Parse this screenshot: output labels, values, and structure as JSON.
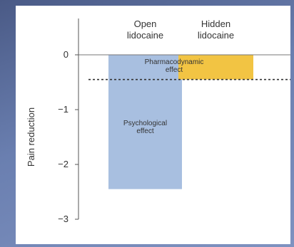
{
  "chart_data": {
    "type": "bar",
    "ylabel": "Pain reduction",
    "ylim": [
      -3,
      0
    ],
    "yticks": [
      0,
      -1,
      -2,
      -3
    ],
    "yticks_labels": [
      "0",
      "−1",
      "−2",
      "−3"
    ],
    "categories": [
      "Open lidocaine",
      "Hidden lidocaine"
    ],
    "category_labels": [
      [
        "Open",
        "lidocaine"
      ],
      [
        "Hidden",
        "lidocaine"
      ]
    ],
    "values": [
      -2.45,
      -0.45
    ],
    "colors": [
      "#a8bfe0",
      "#f2c443"
    ],
    "reference_line": {
      "value": -0.45,
      "style": "dashed"
    },
    "annotations": [
      {
        "lines": [
          "Psychological",
          "effect"
        ],
        "category": "Open lidocaine"
      },
      {
        "lines": [
          "Pharmacodynamic",
          "effect"
        ],
        "category": "Hidden lidocaine"
      }
    ]
  }
}
